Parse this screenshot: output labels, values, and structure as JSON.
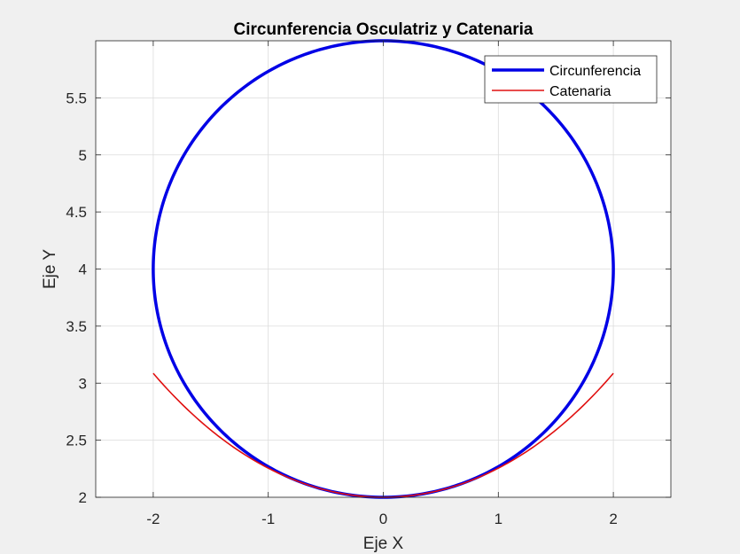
{
  "chart_data": {
    "type": "line",
    "title": "Circunferencia Osculatriz y Catenaria",
    "xlabel": "Eje X",
    "ylabel": "Eje Y",
    "xlim": [
      -2.5,
      2.5
    ],
    "ylim": [
      2,
      6
    ],
    "xticks": [
      -2,
      -1,
      0,
      1,
      2
    ],
    "xtick_labels": [
      "-2",
      "-1",
      "0",
      "1",
      "2"
    ],
    "yticks": [
      2,
      2.5,
      3,
      3.5,
      4,
      4.5,
      5,
      5.5
    ],
    "ytick_labels": [
      "2",
      "2.5",
      "3",
      "3.5",
      "4",
      "4.5",
      "5",
      "5.5"
    ],
    "grid": true,
    "legend": {
      "placement": "top-right",
      "entries": [
        "Circunferencia",
        "Catenaria"
      ]
    },
    "series": [
      {
        "name": "Circunferencia",
        "color": "#0000e6",
        "kind": "circle",
        "center": [
          0,
          4
        ],
        "radius": 2
      },
      {
        "name": "Catenaria",
        "color": "#e01010",
        "kind": "catenary",
        "a": 2,
        "x_range": [
          -2,
          2
        ]
      }
    ]
  }
}
